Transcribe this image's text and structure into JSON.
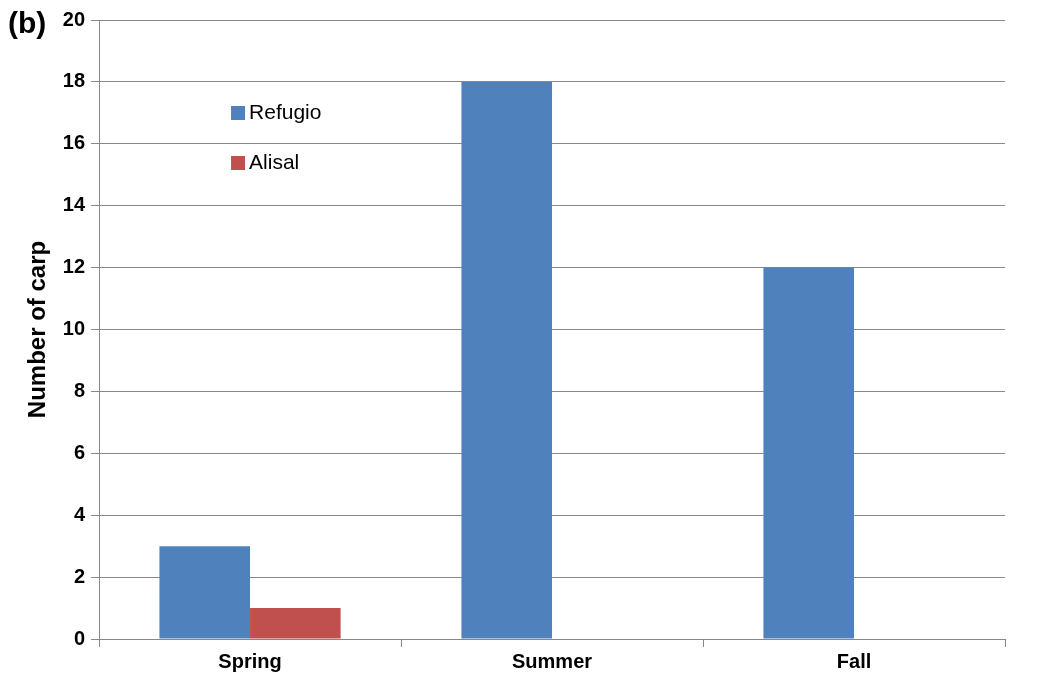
{
  "chart_data": {
    "type": "bar",
    "categories": [
      "Spring",
      "Summer",
      "Fall"
    ],
    "series": [
      {
        "name": "Refugio",
        "color": "#4f81bd",
        "values": [
          3,
          18,
          12
        ]
      },
      {
        "name": "Alisal",
        "color": "#c0504d",
        "values": [
          1,
          0,
          0
        ]
      }
    ],
    "ylabel": "Number of carp",
    "ylim": [
      0,
      20
    ],
    "yticks": [
      0,
      2,
      4,
      6,
      8,
      10,
      12,
      14,
      16,
      18,
      20
    ],
    "grid": "y",
    "legend": "top left",
    "annotations": [
      "(b)"
    ]
  }
}
